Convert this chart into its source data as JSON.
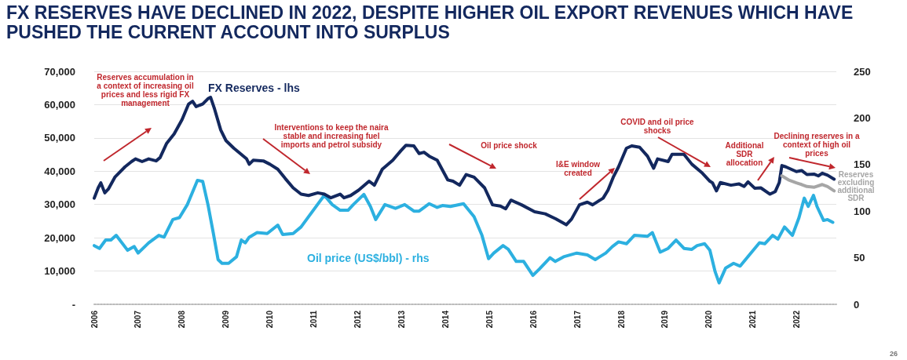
{
  "chart_data": {
    "type": "line",
    "title": "FX RESERVES HAVE DECLINED IN 2022, DESPITE HIGHER OIL EXPORT REVENUES WHICH HAVE PUSHED THE CURRENT ACCOUNT INTO SURPLUS",
    "xlim": [
      2006,
      2022.9
    ],
    "xticks": [
      2006,
      2007,
      2008,
      2009,
      2010,
      2011,
      2012,
      2013,
      2014,
      2015,
      2016,
      2017,
      2018,
      2019,
      2020,
      2021,
      2022
    ],
    "ylim": [
      0,
      70000
    ],
    "yticks": [
      {
        "value": 0,
        "label": "-"
      },
      {
        "value": 10000,
        "label": "10,000"
      },
      {
        "value": 20000,
        "label": "20,000"
      },
      {
        "value": 30000,
        "label": "30,000"
      },
      {
        "value": 40000,
        "label": "40,000"
      },
      {
        "value": 50000,
        "label": "50,000"
      },
      {
        "value": 60000,
        "label": "60,000"
      },
      {
        "value": 70000,
        "label": "70,000"
      }
    ],
    "y2lim": [
      0,
      250
    ],
    "y2ticks": [
      0,
      50,
      100,
      150,
      200,
      250
    ],
    "grid": "y",
    "marker": "none",
    "legend": false,
    "series": [
      {
        "name": "FX Reserves - lhs",
        "color": "#13285e",
        "x": [
          2006.0,
          2006.09,
          2006.15,
          2006.24,
          2006.32,
          2006.47,
          2006.7,
          2006.85,
          2006.94,
          2007.09,
          2007.24,
          2007.41,
          2007.5,
          2007.65,
          2007.82,
          2008.0,
          2008.15,
          2008.24,
          2008.32,
          2008.47,
          2008.59,
          2008.65,
          2008.74,
          2008.88,
          2009.0,
          2009.18,
          2009.47,
          2009.53,
          2009.62,
          2009.85,
          2010.0,
          2010.18,
          2010.35,
          2010.53,
          2010.71,
          2010.88,
          2011.09,
          2011.24,
          2011.39,
          2011.6,
          2011.69,
          2011.84,
          2012.02,
          2012.26,
          2012.38,
          2012.56,
          2012.8,
          2012.98,
          2013.1,
          2013.28,
          2013.4,
          2013.51,
          2013.63,
          2013.81,
          2014.05,
          2014.17,
          2014.32,
          2014.47,
          2014.65,
          2014.89,
          2015.07,
          2015.25,
          2015.37,
          2015.49,
          2015.73,
          2016.03,
          2016.27,
          2016.51,
          2016.63,
          2016.75,
          2016.87,
          2017.05,
          2017.23,
          2017.35,
          2017.59,
          2017.7,
          2017.82,
          2017.94,
          2018.12,
          2018.24,
          2018.42,
          2018.6,
          2018.74,
          2018.83,
          2019.07,
          2019.16,
          2019.43,
          2019.61,
          2019.85,
          2020.02,
          2020.08,
          2020.17,
          2020.26,
          2020.5,
          2020.68,
          2020.8,
          2020.89,
          2021.04,
          2021.18,
          2021.39,
          2021.51,
          2021.6,
          2021.66,
          2021.75,
          2021.99,
          2022.11,
          2022.23,
          2022.4,
          2022.49,
          2022.58,
          2022.7,
          2022.85
        ],
        "values": [
          31900,
          35000,
          36500,
          33500,
          34600,
          38200,
          41300,
          42900,
          43700,
          42900,
          43700,
          43100,
          44100,
          48400,
          51200,
          55500,
          60200,
          61000,
          59400,
          60200,
          61800,
          62200,
          58700,
          52400,
          49200,
          46900,
          43700,
          42100,
          43300,
          43100,
          42100,
          40600,
          37800,
          35000,
          33100,
          32700,
          33500,
          33100,
          32000,
          33100,
          32000,
          32700,
          34300,
          37000,
          35800,
          40600,
          43300,
          46100,
          47800,
          47600,
          45300,
          45700,
          44500,
          43300,
          37400,
          37000,
          35800,
          39000,
          38200,
          35000,
          29900,
          29500,
          28700,
          31300,
          29900,
          27800,
          27200,
          25700,
          24800,
          23900,
          25600,
          29900,
          30700,
          29900,
          31900,
          34300,
          38200,
          41300,
          46900,
          47600,
          47200,
          44500,
          40900,
          43700,
          42900,
          45100,
          45100,
          42100,
          39400,
          37000,
          36500,
          34100,
          36600,
          35800,
          36200,
          35400,
          36800,
          34900,
          35000,
          33100,
          33900,
          36600,
          41700,
          41300,
          39900,
          40200,
          39000,
          39100,
          38600,
          39400,
          38800,
          37600
        ]
      },
      {
        "name": "Oil price (US$/bbl) - rhs",
        "color": "#2cb0e0",
        "axis": "y2",
        "x": [
          2006.0,
          2006.12,
          2006.26,
          2006.38,
          2006.5,
          2006.76,
          2006.91,
          2007.0,
          2007.24,
          2007.47,
          2007.59,
          2007.79,
          2007.94,
          2008.12,
          2008.35,
          2008.47,
          2008.59,
          2008.71,
          2008.82,
          2008.91,
          2009.06,
          2009.24,
          2009.35,
          2009.44,
          2009.53,
          2009.71,
          2009.94,
          2010.18,
          2010.29,
          2010.53,
          2010.71,
          2010.88,
          2011.24,
          2011.42,
          2011.6,
          2011.78,
          2011.9,
          2012.14,
          2012.29,
          2012.41,
          2012.62,
          2012.86,
          2013.07,
          2013.28,
          2013.4,
          2013.63,
          2013.81,
          2013.93,
          2014.11,
          2014.41,
          2014.65,
          2014.83,
          2014.98,
          2015.1,
          2015.31,
          2015.43,
          2015.61,
          2015.78,
          2015.99,
          2016.14,
          2016.38,
          2016.5,
          2016.69,
          2016.99,
          2017.23,
          2017.41,
          2017.65,
          2017.8,
          2017.94,
          2018.12,
          2018.3,
          2018.6,
          2018.71,
          2018.89,
          2019.07,
          2019.25,
          2019.43,
          2019.61,
          2019.73,
          2019.9,
          2020.02,
          2020.14,
          2020.23,
          2020.38,
          2020.56,
          2020.71,
          2020.92,
          2021.15,
          2021.27,
          2021.45,
          2021.57,
          2021.72,
          2021.9,
          2022.05,
          2022.17,
          2022.26,
          2022.38,
          2022.46,
          2022.61,
          2022.7,
          2022.82
        ],
        "values": [
          63,
          60,
          69,
          69,
          74,
          58,
          62,
          55,
          66,
          74,
          72,
          91,
          93,
          107,
          133,
          132,
          107,
          77,
          48,
          44,
          44,
          51,
          69,
          66,
          72,
          77,
          76,
          85,
          75,
          76,
          83,
          94,
          117,
          107,
          101,
          101,
          107,
          118,
          105,
          91,
          107,
          103,
          107,
          100,
          100,
          108,
          104,
          106,
          105,
          108,
          94,
          74,
          49,
          55,
          63,
          59,
          46,
          46,
          31,
          38,
          50,
          46,
          51,
          55,
          53,
          48,
          55,
          62,
          67,
          65,
          74,
          73,
          77,
          56,
          60,
          69,
          60,
          59,
          63,
          65,
          58,
          35,
          23,
          39,
          44,
          41,
          53,
          66,
          65,
          74,
          70,
          83,
          74,
          93,
          114,
          105,
          117,
          105,
          90,
          91,
          88
        ]
      },
      {
        "name": "Reserves excluding additional SDR",
        "color": "#a6a6a6",
        "x": [
          2021.66,
          2021.81,
          2021.99,
          2022.11,
          2022.23,
          2022.4,
          2022.58,
          2022.7,
          2022.85
        ],
        "values": [
          38600,
          37400,
          36500,
          36000,
          35400,
          35200,
          36000,
          35400,
          34100
        ]
      }
    ],
    "annotations": [
      "Reserves accumulation in a context of increasing oil prices and less rigid FX management",
      "Interventions to keep the naira stable and increasing fuel imports and petrol subsidy",
      "Oil price shock",
      "I&E window created",
      "COVID and oil price shocks",
      "Additional SDR allocation",
      "Declining reserves in a context of high oil prices",
      "26"
    ]
  }
}
